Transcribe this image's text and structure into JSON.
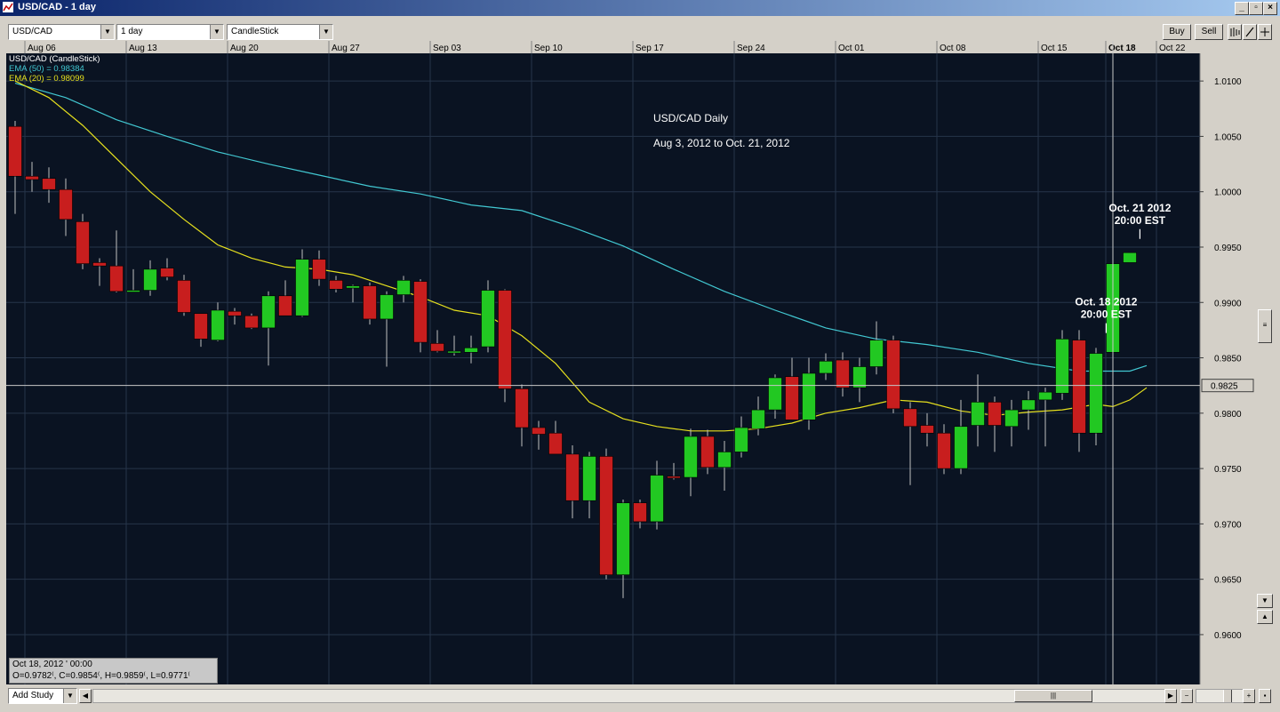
{
  "window": {
    "title": "USD/CAD - 1 day",
    "controls": [
      "_",
      "▫",
      "×"
    ]
  },
  "toolbar": {
    "symbol": "USD/CAD",
    "interval": "1 day",
    "chart_type": "CandleStick",
    "buy_label": "Buy",
    "sell_label": "Sell"
  },
  "bottom": {
    "add_study_label": "Add Study",
    "zoom_out": "−",
    "zoom_in": "+"
  },
  "ohlc_box": {
    "date_line": "Oct 18, 2012 ' 00:00",
    "values_line": "O=0.9782⁽, C=0.9854⁽, H=0.9859⁽, L=0.9771⁽"
  },
  "colors": {
    "background": "#0a1322",
    "grid": "#26344a",
    "up": "#22c822",
    "down": "#c81e1e",
    "ema50": "#42c8d2",
    "ema20": "#e6e01e",
    "text": "#ffffff"
  },
  "chart_data": {
    "type": "candlestick",
    "title": "USD/CAD Daily",
    "subtitle": "Aug 3, 2012 to Oct. 21, 2012",
    "legend": [
      {
        "text": "USD/CAD (CandleStick)",
        "color": "#ffffff"
      },
      {
        "text": "EMA (50) = 0.98384",
        "color": "#42c8d2"
      },
      {
        "text": "EMA (20) = 0.98099",
        "color": "#e6e01e"
      }
    ],
    "y_ticks": [
      "1.0100",
      "1.0050",
      "1.0000",
      "0.9950",
      "0.9900",
      "0.9850",
      "0.9800",
      "0.9750",
      "0.9700",
      "0.9650",
      "0.9600"
    ],
    "ylim": [
      0.9555,
      1.0125
    ],
    "x_ticks": [
      "Aug 06",
      "Aug 13",
      "Aug 20",
      "Aug 27",
      "Sep 03",
      "Sep 10",
      "Sep 17",
      "Sep 24",
      "Oct 01",
      "Oct 08",
      "Oct 15",
      "Oct 18",
      "Oct 22"
    ],
    "x_tick_index": [
      1,
      7,
      13,
      19,
      25,
      31,
      37,
      43,
      49,
      55,
      61,
      65,
      68
    ],
    "current_price": "0.9825",
    "candles": [
      {
        "o": 1.0059,
        "h": 1.0064,
        "l": 0.998,
        "c": 1.0014
      },
      {
        "o": 1.0014,
        "h": 1.0027,
        "l": 1.0,
        "c": 1.0011
      },
      {
        "o": 1.0012,
        "h": 1.0022,
        "l": 0.999,
        "c": 1.0002
      },
      {
        "o": 1.0002,
        "h": 1.0012,
        "l": 0.996,
        "c": 0.9975
      },
      {
        "o": 0.9973,
        "h": 0.998,
        "l": 0.993,
        "c": 0.9935
      },
      {
        "o": 0.9936,
        "h": 0.994,
        "l": 0.9915,
        "c": 0.9933
      },
      {
        "o": 0.9933,
        "h": 0.9965,
        "l": 0.9909,
        "c": 0.991
      },
      {
        "o": 0.9911,
        "h": 0.993,
        "l": 0.991,
        "c": 0.9911
      },
      {
        "o": 0.9911,
        "h": 0.9938,
        "l": 0.9906,
        "c": 0.993
      },
      {
        "o": 0.9931,
        "h": 0.994,
        "l": 0.992,
        "c": 0.9923
      },
      {
        "o": 0.992,
        "h": 0.9925,
        "l": 0.9888,
        "c": 0.9891
      },
      {
        "o": 0.989,
        "h": 0.989,
        "l": 0.986,
        "c": 0.9867
      },
      {
        "o": 0.9866,
        "h": 0.99,
        "l": 0.9865,
        "c": 0.9893
      },
      {
        "o": 0.9892,
        "h": 0.9895,
        "l": 0.988,
        "c": 0.9888
      },
      {
        "o": 0.9888,
        "h": 0.989,
        "l": 0.9876,
        "c": 0.9877
      },
      {
        "o": 0.9877,
        "h": 0.991,
        "l": 0.9843,
        "c": 0.9906
      },
      {
        "o": 0.9906,
        "h": 0.992,
        "l": 0.9888,
        "c": 0.9888
      },
      {
        "o": 0.9888,
        "h": 0.9948,
        "l": 0.9887,
        "c": 0.9939
      },
      {
        "o": 0.9939,
        "h": 0.9947,
        "l": 0.9915,
        "c": 0.9921
      },
      {
        "o": 0.992,
        "h": 0.9924,
        "l": 0.9909,
        "c": 0.9912
      },
      {
        "o": 0.9913,
        "h": 0.9916,
        "l": 0.99,
        "c": 0.9915
      },
      {
        "o": 0.9915,
        "h": 0.9918,
        "l": 0.988,
        "c": 0.9885
      },
      {
        "o": 0.9885,
        "h": 0.991,
        "l": 0.9842,
        "c": 0.9907
      },
      {
        "o": 0.9907,
        "h": 0.9924,
        "l": 0.99,
        "c": 0.992
      },
      {
        "o": 0.9919,
        "h": 0.9921,
        "l": 0.9855,
        "c": 0.9864
      },
      {
        "o": 0.9863,
        "h": 0.9875,
        "l": 0.9855,
        "c": 0.9856
      },
      {
        "o": 0.9856,
        "h": 0.987,
        "l": 0.9852,
        "c": 0.9856
      },
      {
        "o": 0.9855,
        "h": 0.987,
        "l": 0.9845,
        "c": 0.9859
      },
      {
        "o": 0.986,
        "h": 0.992,
        "l": 0.9855,
        "c": 0.9911
      },
      {
        "o": 0.9911,
        "h": 0.9912,
        "l": 0.981,
        "c": 0.9822
      },
      {
        "o": 0.9822,
        "h": 0.9826,
        "l": 0.977,
        "c": 0.9787
      },
      {
        "o": 0.9787,
        "h": 0.9793,
        "l": 0.9767,
        "c": 0.9781
      },
      {
        "o": 0.9782,
        "h": 0.9793,
        "l": 0.9765,
        "c": 0.9763
      },
      {
        "o": 0.9763,
        "h": 0.9771,
        "l": 0.9705,
        "c": 0.9721
      },
      {
        "o": 0.9721,
        "h": 0.9765,
        "l": 0.9705,
        "c": 0.9761
      },
      {
        "o": 0.9761,
        "h": 0.9768,
        "l": 0.965,
        "c": 0.9654
      },
      {
        "o": 0.9654,
        "h": 0.9722,
        "l": 0.9633,
        "c": 0.9719
      },
      {
        "o": 0.9719,
        "h": 0.9722,
        "l": 0.9696,
        "c": 0.9702
      },
      {
        "o": 0.9702,
        "h": 0.9757,
        "l": 0.9695,
        "c": 0.9744
      },
      {
        "o": 0.9743,
        "h": 0.9755,
        "l": 0.974,
        "c": 0.9742
      },
      {
        "o": 0.9742,
        "h": 0.9786,
        "l": 0.9725,
        "c": 0.9779
      },
      {
        "o": 0.9779,
        "h": 0.9785,
        "l": 0.9745,
        "c": 0.9751
      },
      {
        "o": 0.9751,
        "h": 0.9775,
        "l": 0.973,
        "c": 0.9765
      },
      {
        "o": 0.9765,
        "h": 0.9797,
        "l": 0.976,
        "c": 0.9787
      },
      {
        "o": 0.9786,
        "h": 0.9815,
        "l": 0.978,
        "c": 0.9803
      },
      {
        "o": 0.9803,
        "h": 0.9835,
        "l": 0.9795,
        "c": 0.9832
      },
      {
        "o": 0.9833,
        "h": 0.985,
        "l": 0.9795,
        "c": 0.9794
      },
      {
        "o": 0.9794,
        "h": 0.985,
        "l": 0.9785,
        "c": 0.9836
      },
      {
        "o": 0.9836,
        "h": 0.9854,
        "l": 0.983,
        "c": 0.9847
      },
      {
        "o": 0.9848,
        "h": 0.9855,
        "l": 0.9815,
        "c": 0.9823
      },
      {
        "o": 0.9823,
        "h": 0.985,
        "l": 0.981,
        "c": 0.9842
      },
      {
        "o": 0.9842,
        "h": 0.9883,
        "l": 0.9835,
        "c": 0.9866
      },
      {
        "o": 0.9866,
        "h": 0.987,
        "l": 0.98,
        "c": 0.9804
      },
      {
        "o": 0.9804,
        "h": 0.981,
        "l": 0.9735,
        "c": 0.9788
      },
      {
        "o": 0.9789,
        "h": 0.98,
        "l": 0.977,
        "c": 0.9782
      },
      {
        "o": 0.9782,
        "h": 0.979,
        "l": 0.9745,
        "c": 0.975
      },
      {
        "o": 0.975,
        "h": 0.9812,
        "l": 0.9745,
        "c": 0.9788
      },
      {
        "o": 0.9789,
        "h": 0.9835,
        "l": 0.977,
        "c": 0.981
      },
      {
        "o": 0.981,
        "h": 0.9815,
        "l": 0.9765,
        "c": 0.9789
      },
      {
        "o": 0.9788,
        "h": 0.9812,
        "l": 0.977,
        "c": 0.9803
      },
      {
        "o": 0.9803,
        "h": 0.982,
        "l": 0.9785,
        "c": 0.9812
      },
      {
        "o": 0.9812,
        "h": 0.9823,
        "l": 0.977,
        "c": 0.9819
      },
      {
        "o": 0.9818,
        "h": 0.9875,
        "l": 0.9812,
        "c": 0.9867
      },
      {
        "o": 0.9866,
        "h": 0.9875,
        "l": 0.9765,
        "c": 0.9782
      },
      {
        "o": 0.9782,
        "h": 0.9859,
        "l": 0.9771,
        "c": 0.9854
      },
      {
        "o": 0.9855,
        "h": 0.994,
        "l": 0.985,
        "c": 0.9935
      },
      {
        "o": 0.9936,
        "h": 0.9945,
        "l": 0.9936,
        "c": 0.9945
      }
    ],
    "ema50": [
      [
        0,
        1.0098
      ],
      [
        3,
        1.0085
      ],
      [
        6,
        1.0065
      ],
      [
        9,
        1.005
      ],
      [
        12,
        1.0036
      ],
      [
        15,
        1.0025
      ],
      [
        18,
        1.0015
      ],
      [
        21,
        1.0005
      ],
      [
        24,
        0.9998
      ],
      [
        27,
        0.9988
      ],
      [
        30,
        0.9983
      ],
      [
        33,
        0.9968
      ],
      [
        36,
        0.9951
      ],
      [
        39,
        0.993
      ],
      [
        42,
        0.991
      ],
      [
        45,
        0.9893
      ],
      [
        48,
        0.9877
      ],
      [
        51,
        0.9867
      ],
      [
        54,
        0.9862
      ],
      [
        57,
        0.9855
      ],
      [
        60,
        0.9845
      ],
      [
        63,
        0.9838
      ],
      [
        66,
        0.9838
      ],
      [
        67,
        0.9843
      ]
    ],
    "ema20": [
      [
        0,
        1.01
      ],
      [
        2,
        1.0085
      ],
      [
        4,
        1.006
      ],
      [
        6,
        1.003
      ],
      [
        8,
        1.0
      ],
      [
        10,
        0.9975
      ],
      [
        12,
        0.9952
      ],
      [
        14,
        0.994
      ],
      [
        16,
        0.9932
      ],
      [
        18,
        0.993
      ],
      [
        20,
        0.9925
      ],
      [
        22,
        0.9915
      ],
      [
        24,
        0.9905
      ],
      [
        26,
        0.9893
      ],
      [
        28,
        0.9888
      ],
      [
        30,
        0.987
      ],
      [
        32,
        0.9845
      ],
      [
        34,
        0.981
      ],
      [
        36,
        0.9795
      ],
      [
        38,
        0.9788
      ],
      [
        40,
        0.9784
      ],
      [
        42,
        0.9784
      ],
      [
        44,
        0.9786
      ],
      [
        46,
        0.9791
      ],
      [
        48,
        0.98
      ],
      [
        50,
        0.9805
      ],
      [
        52,
        0.9812
      ],
      [
        54,
        0.981
      ],
      [
        56,
        0.9802
      ],
      [
        58,
        0.9798
      ],
      [
        60,
        0.9801
      ],
      [
        62,
        0.9803
      ],
      [
        64,
        0.9808
      ],
      [
        65,
        0.9806
      ],
      [
        66,
        0.9812
      ],
      [
        67,
        0.9823
      ]
    ],
    "annotations": [
      {
        "index": 64.6,
        "price": 0.987,
        "line1": "Oct. 18 2012",
        "line2": "20:00 EST"
      },
      {
        "index": 66.6,
        "price": 0.9955,
        "line1": "Oct. 21 2012",
        "line2": "20:00 EST"
      }
    ],
    "crosshair_index": 65
  }
}
